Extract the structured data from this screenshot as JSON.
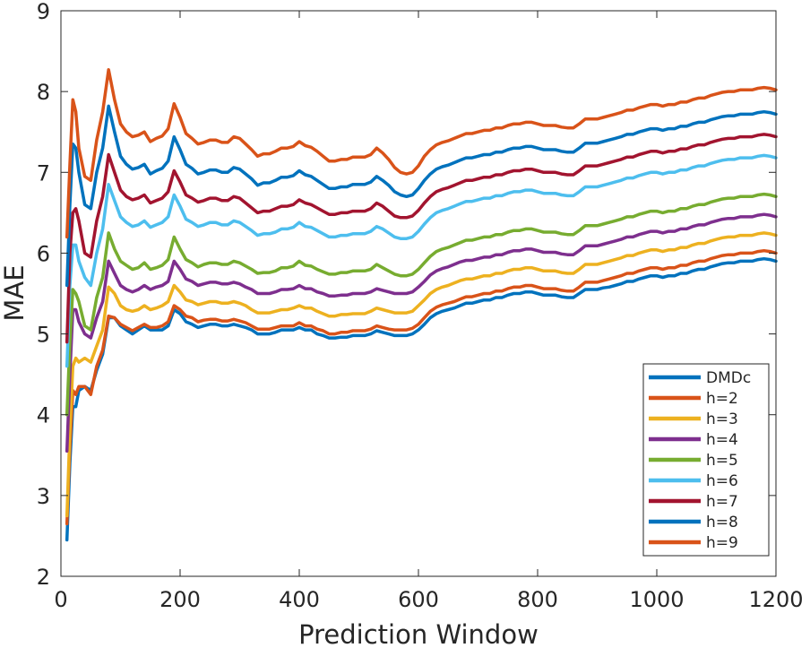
{
  "chart_data": {
    "type": "line",
    "xlabel": "Prediction Window",
    "ylabel": "MAE",
    "xlim": [
      0,
      1200
    ],
    "ylim": [
      2,
      9
    ],
    "xticks": [
      0,
      200,
      400,
      600,
      800,
      1000,
      1200
    ],
    "yticks": [
      2,
      3,
      4,
      5,
      6,
      7,
      8,
      9
    ],
    "grid": false,
    "legend_position": "bottom-right",
    "x": [
      10,
      15,
      20,
      25,
      30,
      40,
      50,
      60,
      70,
      80,
      90,
      100,
      110,
      120,
      130,
      140,
      150,
      160,
      170,
      180,
      190,
      200,
      210,
      220,
      230,
      240,
      250,
      260,
      270,
      280,
      290,
      300,
      310,
      320,
      330,
      340,
      350,
      360,
      370,
      380,
      390,
      400,
      410,
      420,
      430,
      440,
      450,
      460,
      470,
      480,
      490,
      500,
      510,
      520,
      530,
      540,
      550,
      560,
      570,
      580,
      590,
      600,
      610,
      620,
      630,
      640,
      650,
      660,
      670,
      680,
      690,
      700,
      710,
      720,
      730,
      740,
      750,
      760,
      770,
      780,
      790,
      800,
      810,
      820,
      830,
      840,
      850,
      860,
      870,
      880,
      890,
      900,
      910,
      920,
      930,
      940,
      950,
      960,
      970,
      980,
      990,
      1000,
      1010,
      1020,
      1030,
      1040,
      1050,
      1060,
      1070,
      1080,
      1090,
      1100,
      1110,
      1120,
      1130,
      1140,
      1150,
      1160,
      1170,
      1180,
      1190,
      1200
    ],
    "series": [
      {
        "name": "DMDc",
        "color": "#0072BD",
        "values": [
          2.45,
          3.4,
          4.1,
          4.1,
          4.3,
          4.35,
          4.3,
          4.55,
          4.75,
          5.2,
          5.2,
          5.1,
          5.05,
          5.0,
          5.05,
          5.1,
          5.05,
          5.05,
          5.05,
          5.1,
          5.3,
          5.25,
          5.15,
          5.12,
          5.08,
          5.1,
          5.12,
          5.12,
          5.1,
          5.1,
          5.12,
          5.1,
          5.08,
          5.05,
          5.0,
          5.0,
          5.0,
          5.02,
          5.05,
          5.05,
          5.05,
          5.08,
          5.05,
          5.05,
          5.0,
          4.98,
          4.95,
          4.95,
          4.96,
          4.96,
          4.98,
          4.98,
          4.98,
          5.0,
          5.04,
          5.02,
          5.0,
          4.98,
          4.98,
          4.98,
          5.0,
          5.05,
          5.12,
          5.2,
          5.25,
          5.28,
          5.3,
          5.32,
          5.35,
          5.38,
          5.38,
          5.4,
          5.42,
          5.42,
          5.45,
          5.45,
          5.48,
          5.5,
          5.5,
          5.52,
          5.52,
          5.5,
          5.48,
          5.48,
          5.48,
          5.46,
          5.45,
          5.45,
          5.5,
          5.55,
          5.55,
          5.55,
          5.57,
          5.58,
          5.6,
          5.62,
          5.65,
          5.65,
          5.68,
          5.7,
          5.72,
          5.72,
          5.7,
          5.72,
          5.72,
          5.75,
          5.75,
          5.78,
          5.8,
          5.8,
          5.83,
          5.85,
          5.87,
          5.88,
          5.88,
          5.9,
          5.9,
          5.9,
          5.92,
          5.93,
          5.92,
          5.9
        ]
      },
      {
        "name": "h=2",
        "color": "#D95319",
        "values": [
          2.65,
          3.6,
          4.3,
          4.25,
          4.35,
          4.35,
          4.25,
          4.6,
          4.8,
          5.22,
          5.2,
          5.12,
          5.08,
          5.04,
          5.08,
          5.12,
          5.08,
          5.08,
          5.1,
          5.15,
          5.35,
          5.3,
          5.22,
          5.2,
          5.15,
          5.17,
          5.18,
          5.18,
          5.16,
          5.16,
          5.18,
          5.16,
          5.14,
          5.1,
          5.06,
          5.06,
          5.06,
          5.08,
          5.1,
          5.1,
          5.1,
          5.14,
          5.1,
          5.1,
          5.06,
          5.04,
          5.0,
          5.0,
          5.02,
          5.02,
          5.04,
          5.04,
          5.04,
          5.06,
          5.1,
          5.08,
          5.06,
          5.05,
          5.05,
          5.05,
          5.07,
          5.12,
          5.2,
          5.28,
          5.33,
          5.36,
          5.38,
          5.4,
          5.43,
          5.46,
          5.46,
          5.48,
          5.5,
          5.5,
          5.53,
          5.53,
          5.56,
          5.58,
          5.58,
          5.6,
          5.6,
          5.58,
          5.56,
          5.56,
          5.56,
          5.54,
          5.53,
          5.53,
          5.58,
          5.64,
          5.64,
          5.64,
          5.66,
          5.68,
          5.7,
          5.72,
          5.75,
          5.75,
          5.78,
          5.8,
          5.82,
          5.82,
          5.8,
          5.82,
          5.82,
          5.85,
          5.85,
          5.88,
          5.9,
          5.9,
          5.93,
          5.95,
          5.97,
          5.98,
          5.98,
          6.0,
          6.0,
          6.0,
          6.02,
          6.03,
          6.02,
          6.0
        ]
      },
      {
        "name": "h=3",
        "color": "#EDB120",
        "values": [
          2.75,
          3.8,
          4.6,
          4.7,
          4.65,
          4.7,
          4.65,
          4.85,
          5.05,
          5.58,
          5.5,
          5.35,
          5.3,
          5.28,
          5.3,
          5.35,
          5.3,
          5.32,
          5.35,
          5.4,
          5.6,
          5.52,
          5.42,
          5.4,
          5.36,
          5.38,
          5.4,
          5.4,
          5.38,
          5.38,
          5.4,
          5.38,
          5.35,
          5.3,
          5.26,
          5.26,
          5.26,
          5.28,
          5.3,
          5.3,
          5.32,
          5.35,
          5.32,
          5.32,
          5.28,
          5.25,
          5.22,
          5.22,
          5.24,
          5.24,
          5.25,
          5.25,
          5.25,
          5.28,
          5.32,
          5.3,
          5.28,
          5.26,
          5.26,
          5.26,
          5.28,
          5.35,
          5.42,
          5.5,
          5.55,
          5.58,
          5.6,
          5.63,
          5.66,
          5.68,
          5.68,
          5.7,
          5.72,
          5.72,
          5.75,
          5.75,
          5.78,
          5.8,
          5.8,
          5.82,
          5.82,
          5.8,
          5.78,
          5.78,
          5.78,
          5.76,
          5.75,
          5.75,
          5.8,
          5.86,
          5.86,
          5.86,
          5.88,
          5.9,
          5.92,
          5.94,
          5.97,
          5.97,
          6.0,
          6.02,
          6.04,
          6.04,
          6.02,
          6.04,
          6.04,
          6.07,
          6.07,
          6.1,
          6.12,
          6.12,
          6.15,
          6.17,
          6.19,
          6.2,
          6.2,
          6.22,
          6.22,
          6.22,
          6.24,
          6.25,
          6.24,
          6.22
        ]
      },
      {
        "name": "h=4",
        "color": "#7E2F8E",
        "values": [
          3.55,
          4.5,
          5.3,
          5.3,
          5.15,
          5.0,
          4.95,
          5.2,
          5.4,
          5.9,
          5.75,
          5.6,
          5.55,
          5.52,
          5.55,
          5.6,
          5.55,
          5.58,
          5.6,
          5.65,
          5.9,
          5.8,
          5.68,
          5.65,
          5.6,
          5.62,
          5.64,
          5.64,
          5.62,
          5.62,
          5.64,
          5.62,
          5.58,
          5.55,
          5.5,
          5.5,
          5.5,
          5.52,
          5.55,
          5.55,
          5.56,
          5.6,
          5.56,
          5.56,
          5.52,
          5.5,
          5.47,
          5.47,
          5.48,
          5.48,
          5.5,
          5.5,
          5.5,
          5.52,
          5.56,
          5.54,
          5.52,
          5.5,
          5.5,
          5.5,
          5.52,
          5.58,
          5.65,
          5.73,
          5.78,
          5.81,
          5.83,
          5.86,
          5.89,
          5.91,
          5.91,
          5.93,
          5.95,
          5.95,
          5.98,
          5.98,
          6.01,
          6.03,
          6.03,
          6.05,
          6.05,
          6.03,
          6.01,
          6.01,
          6.01,
          5.99,
          5.98,
          5.98,
          6.03,
          6.09,
          6.09,
          6.09,
          6.11,
          6.13,
          6.15,
          6.17,
          6.2,
          6.2,
          6.23,
          6.25,
          6.27,
          6.27,
          6.25,
          6.27,
          6.27,
          6.3,
          6.3,
          6.33,
          6.35,
          6.35,
          6.38,
          6.4,
          6.42,
          6.43,
          6.43,
          6.45,
          6.45,
          6.45,
          6.47,
          6.48,
          6.47,
          6.45
        ]
      },
      {
        "name": "h=5",
        "color": "#77AC30",
        "values": [
          4.0,
          4.9,
          5.55,
          5.5,
          5.4,
          5.1,
          5.05,
          5.45,
          5.7,
          6.25,
          6.05,
          5.9,
          5.85,
          5.8,
          5.82,
          5.88,
          5.8,
          5.82,
          5.85,
          5.92,
          6.2,
          6.05,
          5.92,
          5.88,
          5.83,
          5.86,
          5.88,
          5.88,
          5.86,
          5.86,
          5.9,
          5.88,
          5.84,
          5.8,
          5.75,
          5.76,
          5.76,
          5.78,
          5.82,
          5.82,
          5.84,
          5.9,
          5.85,
          5.84,
          5.8,
          5.77,
          5.74,
          5.74,
          5.76,
          5.76,
          5.78,
          5.78,
          5.78,
          5.8,
          5.86,
          5.82,
          5.78,
          5.74,
          5.72,
          5.72,
          5.74,
          5.8,
          5.88,
          5.96,
          6.02,
          6.05,
          6.07,
          6.1,
          6.13,
          6.16,
          6.16,
          6.18,
          6.2,
          6.2,
          6.23,
          6.23,
          6.26,
          6.28,
          6.28,
          6.3,
          6.3,
          6.28,
          6.26,
          6.26,
          6.26,
          6.24,
          6.23,
          6.23,
          6.28,
          6.34,
          6.34,
          6.34,
          6.36,
          6.38,
          6.4,
          6.42,
          6.45,
          6.45,
          6.48,
          6.5,
          6.52,
          6.52,
          6.5,
          6.52,
          6.52,
          6.55,
          6.55,
          6.58,
          6.6,
          6.6,
          6.63,
          6.65,
          6.67,
          6.68,
          6.68,
          6.7,
          6.7,
          6.7,
          6.72,
          6.73,
          6.72,
          6.7
        ]
      },
      {
        "name": "h=6",
        "color": "#4DBEEE",
        "values": [
          4.6,
          5.6,
          6.1,
          6.1,
          5.9,
          5.7,
          5.6,
          6.0,
          6.3,
          6.85,
          6.65,
          6.45,
          6.38,
          6.33,
          6.35,
          6.4,
          6.32,
          6.35,
          6.38,
          6.45,
          6.72,
          6.58,
          6.42,
          6.38,
          6.33,
          6.35,
          6.38,
          6.38,
          6.35,
          6.35,
          6.4,
          6.38,
          6.33,
          6.28,
          6.22,
          6.24,
          6.24,
          6.26,
          6.3,
          6.3,
          6.32,
          6.38,
          6.33,
          6.32,
          6.28,
          6.24,
          6.2,
          6.2,
          6.22,
          6.22,
          6.24,
          6.24,
          6.24,
          6.27,
          6.33,
          6.3,
          6.25,
          6.2,
          6.18,
          6.18,
          6.2,
          6.27,
          6.36,
          6.44,
          6.5,
          6.53,
          6.55,
          6.58,
          6.61,
          6.64,
          6.64,
          6.66,
          6.68,
          6.68,
          6.71,
          6.71,
          6.74,
          6.76,
          6.76,
          6.78,
          6.78,
          6.76,
          6.74,
          6.74,
          6.74,
          6.72,
          6.71,
          6.71,
          6.76,
          6.82,
          6.82,
          6.82,
          6.84,
          6.86,
          6.88,
          6.9,
          6.93,
          6.93,
          6.96,
          6.98,
          7.0,
          7.0,
          6.98,
          7.0,
          7.0,
          7.03,
          7.03,
          7.06,
          7.08,
          7.08,
          7.11,
          7.13,
          7.15,
          7.16,
          7.16,
          7.18,
          7.18,
          7.18,
          7.2,
          7.21,
          7.2,
          7.18
        ]
      },
      {
        "name": "h=7",
        "color": "#A2142F",
        "values": [
          4.9,
          6.0,
          6.5,
          6.55,
          6.4,
          6.0,
          5.95,
          6.4,
          6.7,
          7.22,
          7.0,
          6.78,
          6.7,
          6.66,
          6.68,
          6.72,
          6.62,
          6.65,
          6.68,
          6.76,
          7.02,
          6.88,
          6.72,
          6.68,
          6.63,
          6.65,
          6.68,
          6.68,
          6.65,
          6.65,
          6.7,
          6.68,
          6.62,
          6.56,
          6.5,
          6.52,
          6.52,
          6.55,
          6.58,
          6.58,
          6.6,
          6.66,
          6.62,
          6.6,
          6.56,
          6.52,
          6.48,
          6.48,
          6.5,
          6.5,
          6.52,
          6.52,
          6.52,
          6.55,
          6.62,
          6.58,
          6.52,
          6.46,
          6.44,
          6.44,
          6.46,
          6.53,
          6.62,
          6.7,
          6.76,
          6.79,
          6.81,
          6.84,
          6.87,
          6.9,
          6.9,
          6.92,
          6.94,
          6.94,
          6.97,
          6.97,
          7.0,
          7.02,
          7.02,
          7.04,
          7.04,
          7.02,
          7.0,
          7.0,
          7.0,
          6.98,
          6.97,
          6.97,
          7.02,
          7.08,
          7.08,
          7.08,
          7.1,
          7.12,
          7.14,
          7.16,
          7.19,
          7.19,
          7.22,
          7.24,
          7.26,
          7.26,
          7.24,
          7.26,
          7.26,
          7.29,
          7.29,
          7.32,
          7.34,
          7.34,
          7.37,
          7.39,
          7.41,
          7.42,
          7.42,
          7.44,
          7.44,
          7.44,
          7.46,
          7.47,
          7.46,
          7.44
        ]
      },
      {
        "name": "h=8",
        "color": "#0072BD",
        "values": [
          5.6,
          6.6,
          7.35,
          7.3,
          7.0,
          6.6,
          6.55,
          7.0,
          7.3,
          7.82,
          7.5,
          7.2,
          7.1,
          7.04,
          7.06,
          7.1,
          6.98,
          7.02,
          7.05,
          7.14,
          7.44,
          7.28,
          7.1,
          7.05,
          6.98,
          7.0,
          7.03,
          7.03,
          7.0,
          7.0,
          7.06,
          7.04,
          6.98,
          6.92,
          6.84,
          6.87,
          6.87,
          6.9,
          6.94,
          6.94,
          6.96,
          7.02,
          6.97,
          6.95,
          6.9,
          6.85,
          6.8,
          6.8,
          6.82,
          6.82,
          6.85,
          6.85,
          6.85,
          6.88,
          6.95,
          6.9,
          6.84,
          6.76,
          6.72,
          6.7,
          6.72,
          6.8,
          6.9,
          6.98,
          7.04,
          7.07,
          7.09,
          7.12,
          7.15,
          7.18,
          7.18,
          7.2,
          7.22,
          7.22,
          7.25,
          7.25,
          7.28,
          7.3,
          7.3,
          7.32,
          7.32,
          7.3,
          7.28,
          7.28,
          7.28,
          7.26,
          7.25,
          7.25,
          7.3,
          7.36,
          7.36,
          7.36,
          7.38,
          7.4,
          7.42,
          7.44,
          7.47,
          7.47,
          7.5,
          7.52,
          7.54,
          7.54,
          7.52,
          7.54,
          7.54,
          7.57,
          7.57,
          7.6,
          7.62,
          7.62,
          7.65,
          7.67,
          7.69,
          7.7,
          7.7,
          7.72,
          7.72,
          7.72,
          7.74,
          7.75,
          7.74,
          7.72
        ]
      },
      {
        "name": "h=9",
        "color": "#D95319",
        "values": [
          6.2,
          7.1,
          7.9,
          7.75,
          7.3,
          6.95,
          6.9,
          7.4,
          7.75,
          8.27,
          7.9,
          7.6,
          7.5,
          7.44,
          7.46,
          7.5,
          7.38,
          7.42,
          7.45,
          7.54,
          7.85,
          7.68,
          7.48,
          7.42,
          7.35,
          7.37,
          7.4,
          7.4,
          7.37,
          7.37,
          7.44,
          7.42,
          7.35,
          7.28,
          7.2,
          7.23,
          7.23,
          7.26,
          7.3,
          7.3,
          7.32,
          7.38,
          7.33,
          7.31,
          7.26,
          7.2,
          7.14,
          7.14,
          7.16,
          7.16,
          7.19,
          7.19,
          7.19,
          7.22,
          7.3,
          7.24,
          7.16,
          7.06,
          7.0,
          6.98,
          7.0,
          7.08,
          7.2,
          7.28,
          7.34,
          7.37,
          7.39,
          7.42,
          7.45,
          7.48,
          7.48,
          7.5,
          7.52,
          7.52,
          7.55,
          7.55,
          7.58,
          7.6,
          7.6,
          7.62,
          7.62,
          7.6,
          7.58,
          7.58,
          7.58,
          7.56,
          7.55,
          7.55,
          7.6,
          7.66,
          7.66,
          7.66,
          7.68,
          7.7,
          7.72,
          7.74,
          7.77,
          7.77,
          7.8,
          7.82,
          7.84,
          7.84,
          7.82,
          7.84,
          7.84,
          7.87,
          7.87,
          7.9,
          7.92,
          7.92,
          7.95,
          7.97,
          7.99,
          8.0,
          8.0,
          8.02,
          8.02,
          8.02,
          8.04,
          8.05,
          8.04,
          8.02
        ]
      }
    ]
  }
}
